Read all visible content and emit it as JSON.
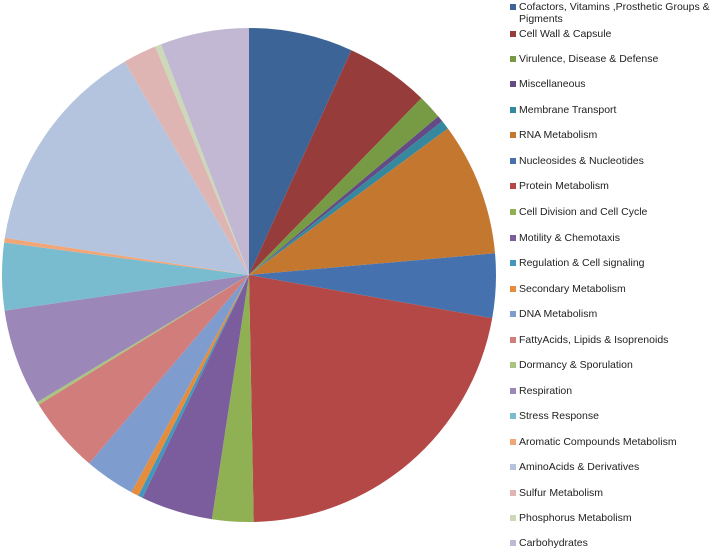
{
  "chart_data": {
    "type": "pie",
    "title": "",
    "start_angle_deg": 0,
    "direction": "clockwise",
    "legend_position": "right",
    "categories": [
      "Cofactors, Vitamins ,Prosthetic Groups & Pigments",
      "Cell Wall & Capsule",
      "Virulence, Disease & Defense",
      "Miscellaneous",
      "Membrane Transport",
      "RNA Metabolism",
      "Nucleosides & Nucleotides",
      "Protein Metabolism",
      "Cell Division and Cell Cycle",
      "Motility & Chemotaxis",
      "Regulation & Cell signaling",
      "Secondary Metabolism",
      "DNA Metabolism",
      "FattyAcids, Lipids & Isoprenoids",
      "Dormancy & Sporulation",
      "Respiration",
      "Stress Response",
      "Aromatic Compounds Metabolism",
      "AminoAcids & Derivatives",
      "Sulfur Metabolism",
      "Phosphorus Metabolism",
      "Carbohydrates"
    ],
    "values": [
      6.8,
      5.5,
      1.6,
      0.4,
      0.6,
      8.7,
      4.2,
      21.9,
      2.7,
      4.7,
      0.3,
      0.5,
      3.3,
      5.0,
      0.2,
      6.3,
      4.4,
      0.3,
      14.2,
      2.2,
      0.4,
      5.8
    ],
    "colors": [
      "#3d6497",
      "#963d3b",
      "#779a44",
      "#634b85",
      "#36889e",
      "#c4772f",
      "#4572ae",
      "#b44846",
      "#8fb153",
      "#7b5d9e",
      "#4397bd",
      "#e58d3c",
      "#7f9ccf",
      "#d07d7b",
      "#a9c47e",
      "#9b87b8",
      "#79bbcf",
      "#f1a678",
      "#b4c4de",
      "#dfb5b4",
      "#cbd9b8",
      "#c2b8d3"
    ]
  },
  "legend": {
    "items": [
      {
        "label": "Cofactors, Vitamins ,Prosthetic Groups &",
        "label2": "Pigments"
      },
      {
        "label": "Cell Wall & Capsule"
      },
      {
        "label": "Virulence, Disease & Defense"
      },
      {
        "label": "Miscellaneous"
      },
      {
        "label": "Membrane Transport"
      },
      {
        "label": "RNA Metabolism"
      },
      {
        "label": "Nucleosides & Nucleotides"
      },
      {
        "label": "Protein Metabolism"
      },
      {
        "label": "Cell Division and Cell Cycle"
      },
      {
        "label": "Motility & Chemotaxis"
      },
      {
        "label": "Regulation & Cell signaling"
      },
      {
        "label": "Secondary Metabolism"
      },
      {
        "label": "DNA Metabolism"
      },
      {
        "label": "FattyAcids, Lipids & Isoprenoids"
      },
      {
        "label": "Dormancy & Sporulation"
      },
      {
        "label": "Respiration"
      },
      {
        "label": "Stress Response"
      },
      {
        "label": "Aromatic Compounds Metabolism"
      },
      {
        "label": "AminoAcids & Derivatives"
      },
      {
        "label": "Sulfur Metabolism"
      },
      {
        "label": "Phosphorus Metabolism"
      },
      {
        "label": "Carbohydrates"
      }
    ]
  }
}
